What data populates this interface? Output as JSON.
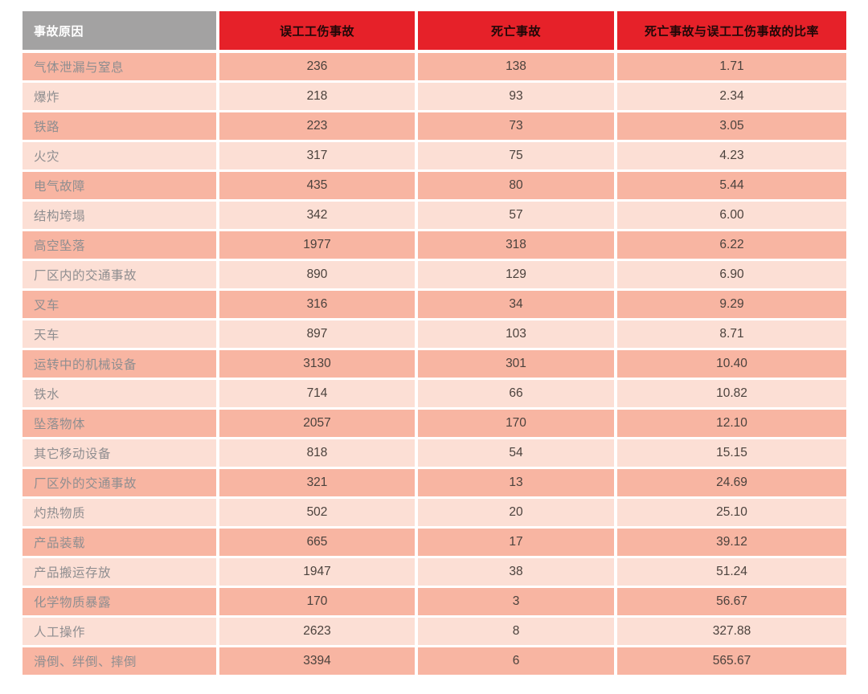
{
  "colors": {
    "header_red": "#e62129",
    "header_gray": "#a3a2a2",
    "header_text_on_red": "#200808",
    "header_text_on_gray": "#ffffff",
    "row_dark": "#f8b5a2",
    "row_light": "#fcdfd5",
    "label_text": "#8f8e90",
    "number_text": "#4b423d"
  },
  "chart_data": {
    "type": "table",
    "columns": [
      "事故原因",
      "误工工伤事故",
      "死亡事故",
      "死亡事故与误工工伤事故的比率"
    ],
    "rows": [
      {
        "cause": "气体泄漏与窒息",
        "lost_time": "236",
        "deaths": "138",
        "ratio": "1.71"
      },
      {
        "cause": "爆炸",
        "lost_time": "218",
        "deaths": "93",
        "ratio": "2.34"
      },
      {
        "cause": "铁路",
        "lost_time": "223",
        "deaths": "73",
        "ratio": "3.05"
      },
      {
        "cause": "火灾",
        "lost_time": "317",
        "deaths": "75",
        "ratio": "4.23"
      },
      {
        "cause": "电气故障",
        "lost_time": "435",
        "deaths": "80",
        "ratio": "5.44"
      },
      {
        "cause": "结构垮塌",
        "lost_time": "342",
        "deaths": "57",
        "ratio": "6.00"
      },
      {
        "cause": "高空坠落",
        "lost_time": "1977",
        "deaths": "318",
        "ratio": "6.22"
      },
      {
        "cause": "厂区内的交通事故",
        "lost_time": "890",
        "deaths": "129",
        "ratio": "6.90"
      },
      {
        "cause": "叉车",
        "lost_time": "316",
        "deaths": "34",
        "ratio": "9.29"
      },
      {
        "cause": "天车",
        "lost_time": "897",
        "deaths": "103",
        "ratio": "8.71"
      },
      {
        "cause": "运转中的机械设备",
        "lost_time": "3130",
        "deaths": "301",
        "ratio": "10.40"
      },
      {
        "cause": "铁水",
        "lost_time": "714",
        "deaths": "66",
        "ratio": "10.82"
      },
      {
        "cause": "坠落物体",
        "lost_time": "2057",
        "deaths": "170",
        "ratio": "12.10"
      },
      {
        "cause": "其它移动设备",
        "lost_time": "818",
        "deaths": "54",
        "ratio": "15.15"
      },
      {
        "cause": "厂区外的交通事故",
        "lost_time": "321",
        "deaths": "13",
        "ratio": "24.69"
      },
      {
        "cause": "灼热物质",
        "lost_time": "502",
        "deaths": "20",
        "ratio": "25.10"
      },
      {
        "cause": "产品装载",
        "lost_time": "665",
        "deaths": "17",
        "ratio": "39.12"
      },
      {
        "cause": "产品搬运存放",
        "lost_time": "1947",
        "deaths": "38",
        "ratio": "51.24"
      },
      {
        "cause": "化学物质暴露",
        "lost_time": "170",
        "deaths": "3",
        "ratio": "56.67"
      },
      {
        "cause": "人工操作",
        "lost_time": "2623",
        "deaths": "8",
        "ratio": "327.88"
      },
      {
        "cause": "滑倒、绊倒、摔倒",
        "lost_time": "3394",
        "deaths": "6",
        "ratio": "565.67"
      }
    ]
  }
}
